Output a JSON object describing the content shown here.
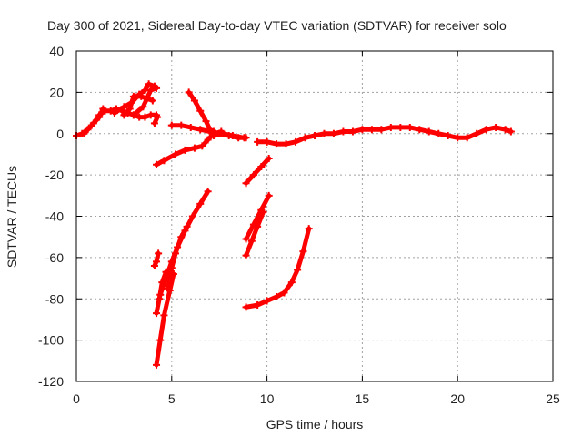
{
  "chart_data": {
    "type": "scatter",
    "title": "Day 300 of 2021, Sidereal Day-to-day VTEC variation (SDTVAR) for receiver solo",
    "xlabel": "GPS time / hours",
    "ylabel": "SDTVAR / TECUs",
    "xlim": [
      0,
      25
    ],
    "ylim": [
      -120,
      40
    ],
    "xticks": [
      0,
      5,
      10,
      15,
      20,
      25
    ],
    "yticks": [
      -120,
      -100,
      -80,
      -60,
      -40,
      -20,
      0,
      20,
      40
    ],
    "grid": true,
    "legend": "none",
    "color": "#ff0000",
    "series": [
      {
        "points": [
          [
            0.0,
            -1
          ],
          [
            0.3,
            0
          ],
          [
            0.6,
            2
          ],
          [
            0.9,
            5
          ],
          [
            1.2,
            9
          ],
          [
            1.5,
            11
          ],
          [
            1.8,
            11
          ],
          [
            2.1,
            12
          ],
          [
            2.4,
            11
          ],
          [
            2.7,
            10
          ],
          [
            3.0,
            9
          ],
          [
            3.3,
            8
          ],
          [
            3.6,
            8
          ],
          [
            3.9,
            9
          ],
          [
            4.2,
            9
          ]
        ]
      },
      {
        "points": [
          [
            0.4,
            0
          ],
          [
            0.8,
            4
          ],
          [
            1.2,
            8
          ],
          [
            1.4,
            12
          ]
        ]
      },
      {
        "points": [
          [
            2.0,
            10
          ],
          [
            2.5,
            13
          ],
          [
            2.9,
            15
          ],
          [
            3.3,
            19
          ],
          [
            3.6,
            21
          ],
          [
            3.8,
            24
          ],
          [
            4.1,
            23
          ]
        ]
      },
      {
        "points": [
          [
            2.5,
            9
          ],
          [
            2.8,
            12
          ],
          [
            3.0,
            18
          ],
          [
            3.4,
            18
          ],
          [
            3.7,
            17
          ],
          [
            4.0,
            16
          ]
        ]
      },
      {
        "points": [
          [
            3.0,
            9
          ],
          [
            3.5,
            13
          ],
          [
            3.9,
            21
          ],
          [
            4.2,
            22
          ]
        ]
      },
      {
        "points": [
          [
            4.1,
            5
          ],
          [
            4.25,
            8
          ]
        ]
      },
      {
        "points": [
          [
            4.2,
            -15
          ],
          [
            4.6,
            -13
          ],
          [
            5.2,
            -10
          ],
          [
            5.7,
            -8
          ],
          [
            6.2,
            -7
          ],
          [
            6.6,
            -6
          ],
          [
            6.9,
            -3
          ],
          [
            7.2,
            0
          ],
          [
            7.6,
            1
          ]
        ]
      },
      {
        "points": [
          [
            5.0,
            4
          ],
          [
            5.5,
            4
          ],
          [
            6.0,
            3
          ],
          [
            6.5,
            2
          ],
          [
            7.0,
            1
          ],
          [
            7.5,
            0
          ],
          [
            8.0,
            -1
          ],
          [
            8.5,
            -2
          ],
          [
            8.9,
            -2
          ]
        ]
      },
      {
        "points": [
          [
            5.9,
            20
          ],
          [
            6.2,
            16
          ],
          [
            6.5,
            11
          ],
          [
            6.8,
            6
          ],
          [
            7.0,
            2
          ],
          [
            7.2,
            1
          ]
        ]
      },
      {
        "points": [
          [
            7.2,
            -1
          ],
          [
            7.7,
            0
          ],
          [
            8.2,
            -1
          ],
          [
            8.8,
            -2
          ]
        ]
      },
      {
        "points": [
          [
            9.5,
            -4
          ],
          [
            10.0,
            -4
          ],
          [
            10.5,
            -5
          ],
          [
            11.0,
            -5
          ],
          [
            11.5,
            -4
          ],
          [
            12.0,
            -2
          ],
          [
            12.5,
            -1
          ],
          [
            13.0,
            0
          ],
          [
            13.5,
            0
          ],
          [
            14.0,
            1
          ],
          [
            14.5,
            1
          ],
          [
            15.0,
            2
          ],
          [
            15.5,
            2
          ],
          [
            16.0,
            2
          ],
          [
            16.5,
            3
          ],
          [
            17.0,
            3
          ],
          [
            17.5,
            3
          ],
          [
            18.0,
            2
          ],
          [
            18.5,
            1
          ],
          [
            19.0,
            0
          ],
          [
            19.5,
            -1
          ],
          [
            20.0,
            -2
          ],
          [
            20.5,
            -2
          ],
          [
            21.0,
            0
          ],
          [
            21.5,
            2
          ],
          [
            22.0,
            3
          ],
          [
            22.5,
            2
          ],
          [
            22.8,
            1
          ]
        ]
      },
      {
        "points": [
          [
            4.1,
            -64
          ],
          [
            4.2,
            -62
          ],
          [
            4.3,
            -58
          ]
        ]
      },
      {
        "points": [
          [
            4.2,
            -87
          ],
          [
            4.35,
            -80
          ],
          [
            4.5,
            -72
          ],
          [
            4.7,
            -67
          ]
        ]
      },
      {
        "points": [
          [
            4.2,
            -112
          ],
          [
            4.4,
            -100
          ],
          [
            4.6,
            -88
          ],
          [
            4.9,
            -76
          ],
          [
            5.1,
            -68
          ]
        ]
      },
      {
        "points": [
          [
            4.4,
            -78
          ],
          [
            4.7,
            -70
          ],
          [
            5.0,
            -62
          ],
          [
            5.3,
            -55
          ],
          [
            5.7,
            -47
          ],
          [
            6.1,
            -40
          ],
          [
            6.5,
            -34
          ],
          [
            6.9,
            -28
          ]
        ]
      },
      {
        "points": [
          [
            4.8,
            -75
          ],
          [
            5.0,
            -65
          ],
          [
            5.2,
            -58
          ],
          [
            5.5,
            -50
          ],
          [
            5.8,
            -45
          ]
        ]
      },
      {
        "points": [
          [
            8.9,
            -24
          ],
          [
            9.3,
            -20
          ],
          [
            9.7,
            -16
          ],
          [
            10.1,
            -12
          ]
        ]
      },
      {
        "points": [
          [
            8.9,
            -51
          ],
          [
            9.3,
            -44
          ],
          [
            9.7,
            -37
          ],
          [
            10.1,
            -30
          ]
        ]
      },
      {
        "points": [
          [
            8.9,
            -59
          ],
          [
            9.2,
            -52
          ],
          [
            9.5,
            -45
          ],
          [
            9.8,
            -38
          ]
        ]
      },
      {
        "points": [
          [
            8.9,
            -84
          ],
          [
            9.5,
            -83
          ],
          [
            10.0,
            -81
          ],
          [
            10.5,
            -79
          ],
          [
            10.9,
            -77
          ],
          [
            11.3,
            -72
          ],
          [
            11.6,
            -66
          ],
          [
            11.9,
            -57
          ],
          [
            12.2,
            -46
          ]
        ]
      }
    ]
  }
}
